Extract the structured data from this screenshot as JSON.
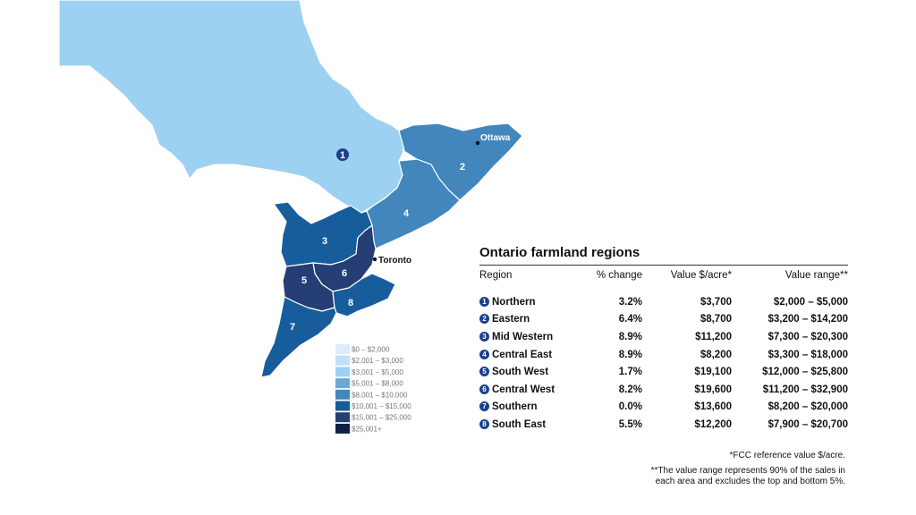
{
  "map": {
    "cities": [
      {
        "name": "Ottawa"
      },
      {
        "name": "Toronto"
      }
    ],
    "regions": [
      {
        "number": "1",
        "name": "Northern",
        "fill": "#9dd1f1"
      },
      {
        "number": "2",
        "name": "Eastern",
        "fill": "#4286bc"
      },
      {
        "number": "3",
        "name": "Mid Western",
        "fill": "#175d9c"
      },
      {
        "number": "4",
        "name": "Central East",
        "fill": "#4286bc"
      },
      {
        "number": "5",
        "name": "South West",
        "fill": "#253e73"
      },
      {
        "number": "6",
        "name": "Central West",
        "fill": "#253e73"
      },
      {
        "number": "7",
        "name": "Southern",
        "fill": "#175d9c"
      },
      {
        "number": "8",
        "name": "South East",
        "fill": "#175d9c"
      }
    ],
    "legend": [
      {
        "label": "$0 – $2,000",
        "color": "#dcedfa"
      },
      {
        "label": "$2,001 – $3,000",
        "color": "#bfe0f6"
      },
      {
        "label": "$3,001 – $5,000",
        "color": "#9dd1f1"
      },
      {
        "label": "$5,001 – $8,000",
        "color": "#6aa9d6"
      },
      {
        "label": "$8,001 – $10,000",
        "color": "#4286bc"
      },
      {
        "label": "$10,001 – $15,000",
        "color": "#175d9c"
      },
      {
        "label": "$15,001 – $25,000",
        "color": "#253e73"
      },
      {
        "label": "$25,001+",
        "color": "#0e1f44"
      }
    ]
  },
  "table": {
    "title": "Ontario farmland regions",
    "headers": {
      "region": "Region",
      "change": "% change",
      "value": "Value $/acre*",
      "range": "Value range**"
    },
    "rows": [
      {
        "number": "1",
        "region": "Northern",
        "change": "3.2%",
        "value": "$3,700",
        "range": "$2,000 – $5,000"
      },
      {
        "number": "2",
        "region": "Eastern",
        "change": "6.4%",
        "value": "$8,700",
        "range": "$3,200 – $14,200"
      },
      {
        "number": "3",
        "region": "Mid Western",
        "change": "8.9%",
        "value": "$11,200",
        "range": "$7,300 – $20,300"
      },
      {
        "number": "4",
        "region": "Central East",
        "change": "8.9%",
        "value": "$8,200",
        "range": "$3,300 – $18,000"
      },
      {
        "number": "5",
        "region": "South West",
        "change": "1.7%",
        "value": "$19,100",
        "range": "$12,000 – $25,800"
      },
      {
        "number": "6",
        "region": "Central West",
        "change": "8.2%",
        "value": "$19,600",
        "range": "$11,200 – $32,900"
      },
      {
        "number": "7",
        "region": "Southern",
        "change": "0.0%",
        "value": "$13,600",
        "range": "$8,200 – $20,000"
      },
      {
        "number": "8",
        "region": "South East",
        "change": "5.5%",
        "value": "$12,200",
        "range": "$7,900 – $20,700"
      }
    ]
  },
  "footnotes": {
    "note1": "*FCC reference value $/acre.",
    "note2_line1": "**The value range represents 90% of the sales in",
    "note2_line2": "each area and excludes the top and bottom 5%."
  }
}
